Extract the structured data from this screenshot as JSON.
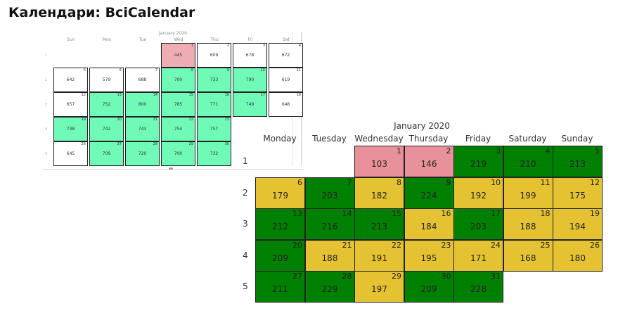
{
  "title": "Календари: BciCalendar",
  "colors": {
    "small_green": "#6ffab8",
    "small_red": "#eeadb3",
    "large_green": "#008000",
    "large_yellow": "#e5c232",
    "large_red": "#e8919b",
    "grid_border": "#222222"
  },
  "small_calendar": {
    "month": "January 2020",
    "weekdays": [
      "Sun",
      "Mon",
      "Tue",
      "Wed",
      "Thu",
      "Fri",
      "Sat"
    ],
    "week_labels": [
      "1",
      "2",
      "3",
      "4",
      "5"
    ],
    "days": [
      {
        "day": 1,
        "value": 445,
        "week": 0,
        "col": 3,
        "color": "red"
      },
      {
        "day": 2,
        "value": 609,
        "week": 0,
        "col": 4,
        "color": "white"
      },
      {
        "day": 3,
        "value": 678,
        "week": 0,
        "col": 5,
        "color": "white"
      },
      {
        "day": 4,
        "value": 672,
        "week": 0,
        "col": 6,
        "color": "white"
      },
      {
        "day": 5,
        "value": 642,
        "week": 1,
        "col": 0,
        "color": "white"
      },
      {
        "day": 6,
        "value": 579,
        "week": 1,
        "col": 1,
        "color": "white"
      },
      {
        "day": 7,
        "value": 688,
        "week": 1,
        "col": 2,
        "color": "white"
      },
      {
        "day": 8,
        "value": 700,
        "week": 1,
        "col": 3,
        "color": "green"
      },
      {
        "day": 9,
        "value": 733,
        "week": 1,
        "col": 4,
        "color": "green"
      },
      {
        "day": 10,
        "value": 790,
        "week": 1,
        "col": 5,
        "color": "green"
      },
      {
        "day": 11,
        "value": 619,
        "week": 1,
        "col": 6,
        "color": "white"
      },
      {
        "day": 12,
        "value": 657,
        "week": 2,
        "col": 0,
        "color": "white"
      },
      {
        "day": 13,
        "value": 752,
        "week": 2,
        "col": 1,
        "color": "green"
      },
      {
        "day": 14,
        "value": 800,
        "week": 2,
        "col": 2,
        "color": "green"
      },
      {
        "day": 15,
        "value": 785,
        "week": 2,
        "col": 3,
        "color": "green"
      },
      {
        "day": 16,
        "value": 771,
        "week": 2,
        "col": 4,
        "color": "green"
      },
      {
        "day": 17,
        "value": 749,
        "week": 2,
        "col": 5,
        "color": "green"
      },
      {
        "day": 18,
        "value": 648,
        "week": 2,
        "col": 6,
        "color": "white"
      },
      {
        "day": 19,
        "value": 738,
        "week": 3,
        "col": 0,
        "color": "green"
      },
      {
        "day": 20,
        "value": 742,
        "week": 3,
        "col": 1,
        "color": "green"
      },
      {
        "day": 21,
        "value": 743,
        "week": 3,
        "col": 2,
        "color": "green"
      },
      {
        "day": 22,
        "value": 754,
        "week": 3,
        "col": 3,
        "color": "green"
      },
      {
        "day": 23,
        "value": 757,
        "week": 3,
        "col": 4,
        "color": "green"
      },
      {
        "day": 26,
        "value": 645,
        "week": 4,
        "col": 0,
        "color": "white"
      },
      {
        "day": 27,
        "value": 709,
        "week": 4,
        "col": 1,
        "color": "green"
      },
      {
        "day": 28,
        "value": 720,
        "week": 4,
        "col": 2,
        "color": "green"
      },
      {
        "day": 29,
        "value": 700,
        "week": 4,
        "col": 3,
        "color": "green"
      },
      {
        "day": 30,
        "value": 732,
        "week": 4,
        "col": 4,
        "color": "green"
      }
    ]
  },
  "large_calendar": {
    "month": "January 2020",
    "weekdays": [
      "Monday",
      "Tuesday",
      "Wednesday",
      "Thursday",
      "Friday",
      "Saturday",
      "Sunday"
    ],
    "week_labels": [
      "1",
      "2",
      "3",
      "4",
      "5"
    ],
    "days": [
      {
        "day": 1,
        "value": 103,
        "week": 0,
        "col": 2,
        "color": "red"
      },
      {
        "day": 2,
        "value": 146,
        "week": 0,
        "col": 3,
        "color": "red"
      },
      {
        "day": 3,
        "value": 219,
        "week": 0,
        "col": 4,
        "color": "green"
      },
      {
        "day": 4,
        "value": 210,
        "week": 0,
        "col": 5,
        "color": "green"
      },
      {
        "day": 5,
        "value": 213,
        "week": 0,
        "col": 6,
        "color": "green"
      },
      {
        "day": 6,
        "value": 179,
        "week": 1,
        "col": 0,
        "color": "yellow"
      },
      {
        "day": 7,
        "value": 203,
        "week": 1,
        "col": 1,
        "color": "green"
      },
      {
        "day": 8,
        "value": 182,
        "week": 1,
        "col": 2,
        "color": "yellow"
      },
      {
        "day": 9,
        "value": 224,
        "week": 1,
        "col": 3,
        "color": "green"
      },
      {
        "day": 10,
        "value": 192,
        "week": 1,
        "col": 4,
        "color": "yellow"
      },
      {
        "day": 11,
        "value": 199,
        "week": 1,
        "col": 5,
        "color": "yellow"
      },
      {
        "day": 12,
        "value": 175,
        "week": 1,
        "col": 6,
        "color": "yellow"
      },
      {
        "day": 13,
        "value": 212,
        "week": 2,
        "col": 0,
        "color": "green"
      },
      {
        "day": 14,
        "value": 216,
        "week": 2,
        "col": 1,
        "color": "green"
      },
      {
        "day": 15,
        "value": 213,
        "week": 2,
        "col": 2,
        "color": "green"
      },
      {
        "day": 16,
        "value": 184,
        "week": 2,
        "col": 3,
        "color": "yellow"
      },
      {
        "day": 17,
        "value": 203,
        "week": 2,
        "col": 4,
        "color": "green"
      },
      {
        "day": 18,
        "value": 188,
        "week": 2,
        "col": 5,
        "color": "yellow"
      },
      {
        "day": 19,
        "value": 194,
        "week": 2,
        "col": 6,
        "color": "yellow"
      },
      {
        "day": 20,
        "value": 209,
        "week": 3,
        "col": 0,
        "color": "green"
      },
      {
        "day": 21,
        "value": 188,
        "week": 3,
        "col": 1,
        "color": "yellow"
      },
      {
        "day": 22,
        "value": 191,
        "week": 3,
        "col": 2,
        "color": "yellow"
      },
      {
        "day": 23,
        "value": 195,
        "week": 3,
        "col": 3,
        "color": "yellow"
      },
      {
        "day": 24,
        "value": 171,
        "week": 3,
        "col": 4,
        "color": "yellow"
      },
      {
        "day": 25,
        "value": 168,
        "week": 3,
        "col": 5,
        "color": "yellow"
      },
      {
        "day": 26,
        "value": 180,
        "week": 3,
        "col": 6,
        "color": "yellow"
      },
      {
        "day": 27,
        "value": 211,
        "week": 4,
        "col": 0,
        "color": "green"
      },
      {
        "day": 28,
        "value": 229,
        "week": 4,
        "col": 1,
        "color": "green"
      },
      {
        "day": 29,
        "value": 197,
        "week": 4,
        "col": 2,
        "color": "yellow"
      },
      {
        "day": 30,
        "value": 209,
        "week": 4,
        "col": 3,
        "color": "green"
      },
      {
        "day": 31,
        "value": 228,
        "week": 4,
        "col": 4,
        "color": "green"
      }
    ]
  }
}
